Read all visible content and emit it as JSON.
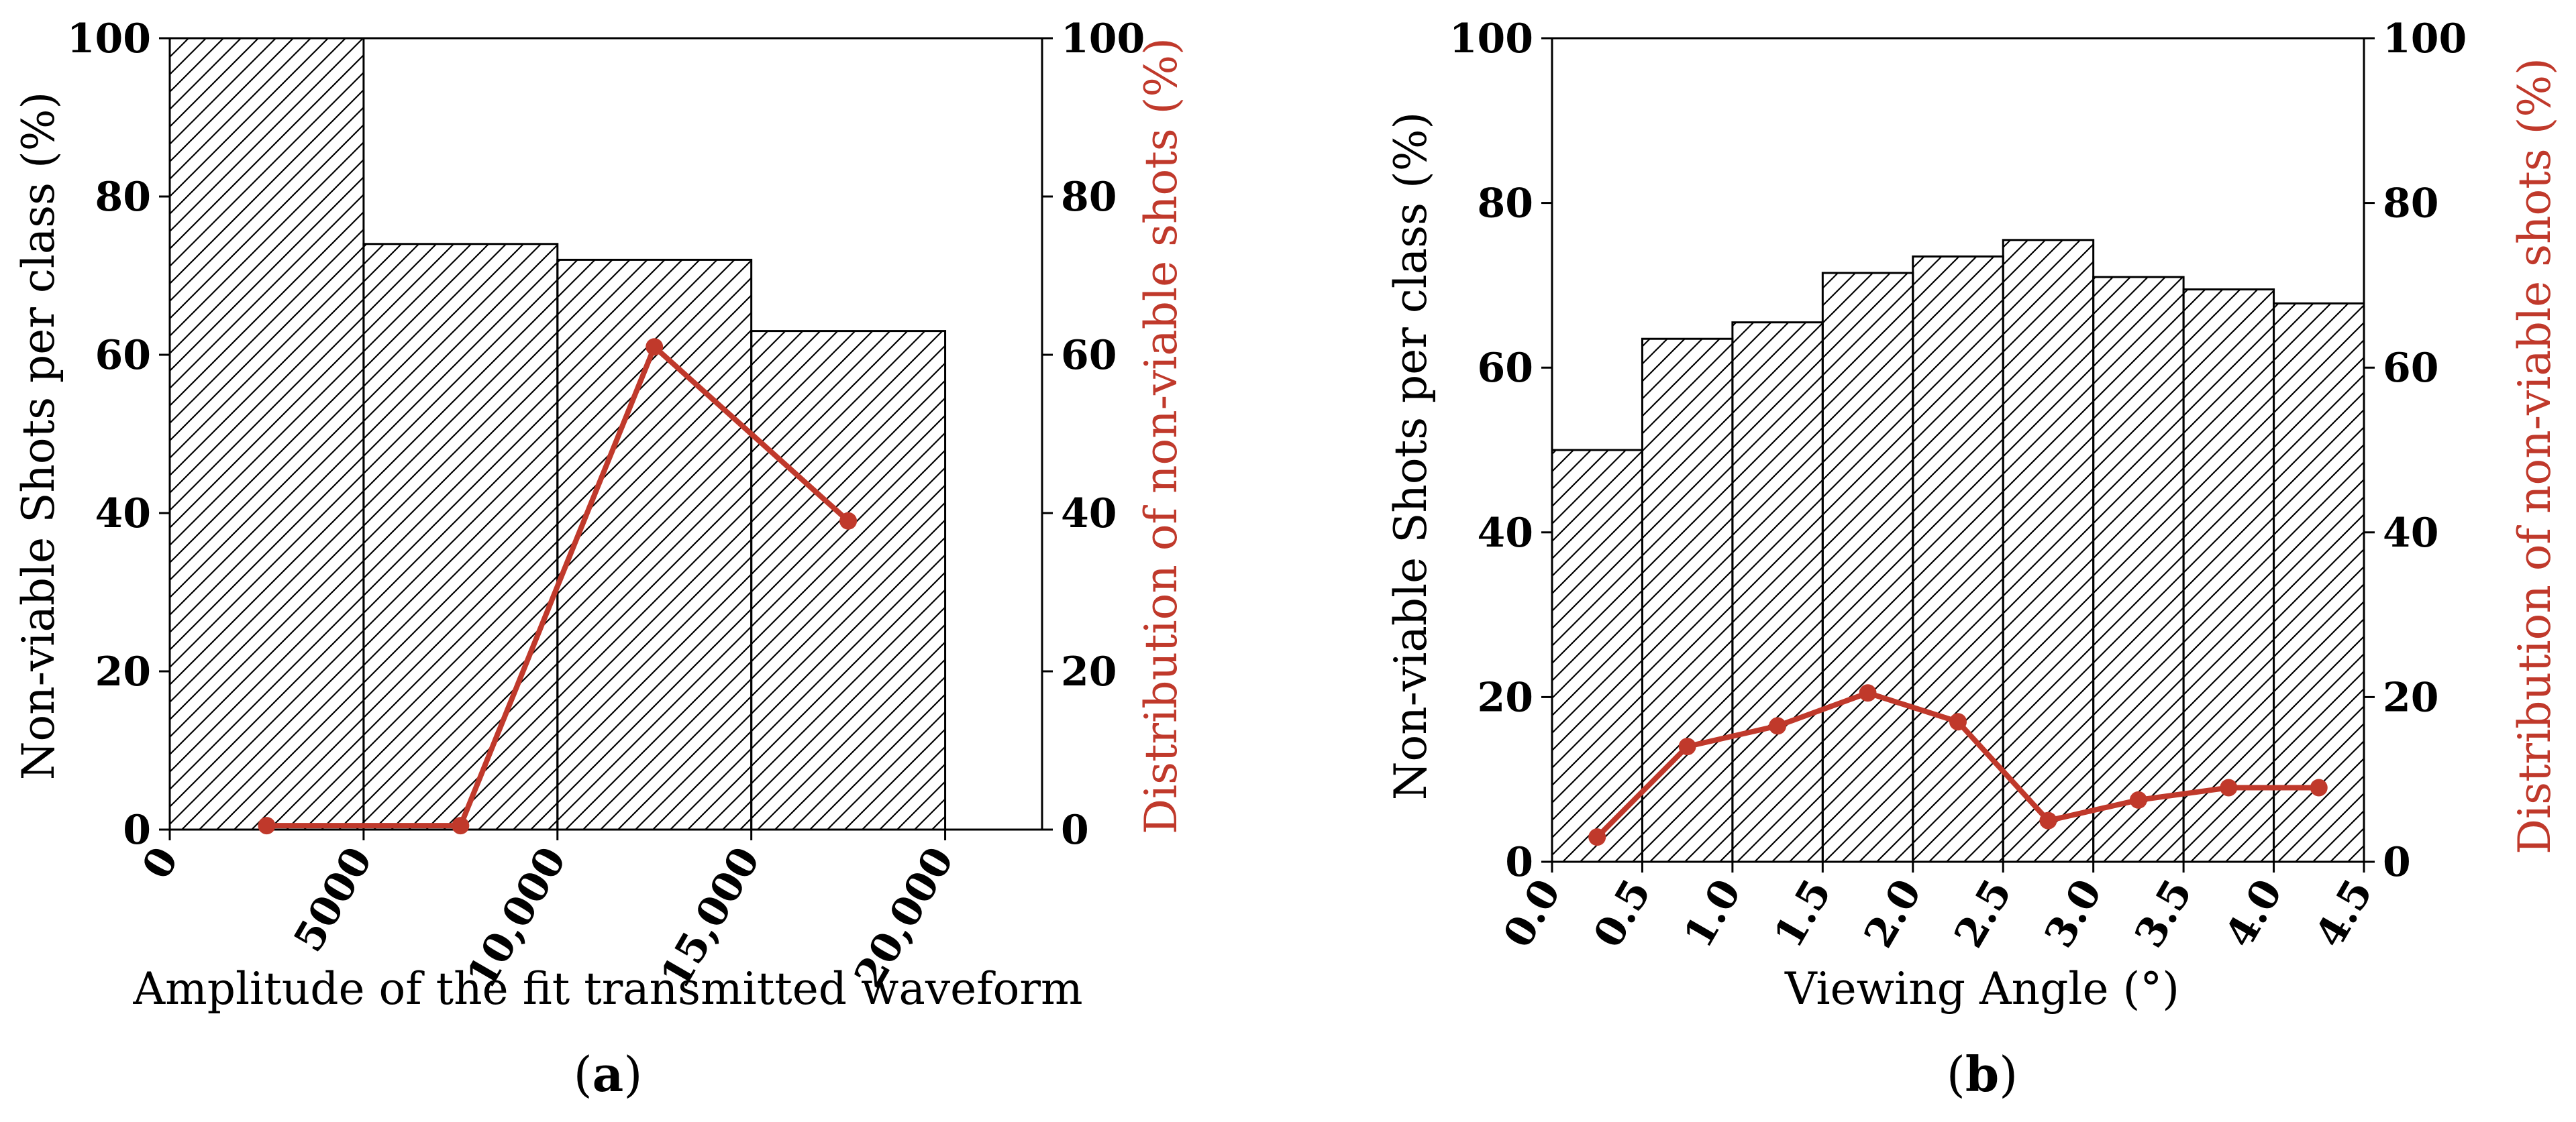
{
  "colors": {
    "line": "#c0392b",
    "hatch": "#000000",
    "axis": "#000000"
  },
  "chart_data": [
    {
      "type": "bar",
      "caption_letter": "a",
      "bar_style": "hatched",
      "bins": [
        [
          0,
          5000
        ],
        [
          5000,
          10000
        ],
        [
          10000,
          15000
        ],
        [
          15000,
          20000
        ]
      ],
      "bar_values": [
        100,
        74,
        72,
        63
      ],
      "line_series": {
        "x": [
          2500,
          7500,
          12500,
          17500
        ],
        "values": [
          0.5,
          0.5,
          61,
          39
        ]
      },
      "xlim": [
        0,
        22500
      ],
      "ylim": [
        0,
        100
      ],
      "y2lim": [
        0,
        100
      ],
      "xticks": [
        0,
        5000,
        10000,
        15000,
        20000
      ],
      "xtick_labels": [
        "0",
        "5000",
        "10,000",
        "15,000",
        "20,000"
      ],
      "yticks": [
        0,
        20,
        40,
        60,
        80,
        100
      ],
      "ytick_labels": [
        "0",
        "20",
        "40",
        "60",
        "80",
        "100"
      ],
      "y2tick_labels": [
        "0",
        "20",
        "40",
        "60",
        "80",
        "100"
      ],
      "xlabel": "Amplitude of the fit transmitted waveform",
      "ylabel": "Non-viable Shots per class (%)",
      "y2label": "Distribution of non-viable shots (%)"
    },
    {
      "type": "bar",
      "caption_letter": "b",
      "bar_style": "hatched",
      "bins": [
        [
          0,
          0.5
        ],
        [
          0.5,
          1.0
        ],
        [
          1.0,
          1.5
        ],
        [
          1.5,
          2.0
        ],
        [
          2.0,
          2.5
        ],
        [
          2.5,
          3.0
        ],
        [
          3.0,
          3.5
        ],
        [
          3.5,
          4.0
        ],
        [
          4.0,
          4.5
        ]
      ],
      "bar_values": [
        50,
        63.5,
        65.5,
        71.5,
        73.5,
        75.5,
        71,
        69.5,
        67.8
      ],
      "line_series": {
        "x": [
          0.25,
          0.75,
          1.25,
          1.75,
          2.25,
          2.75,
          3.25,
          3.75,
          4.25
        ],
        "values": [
          3,
          14,
          16.5,
          20.5,
          17,
          5,
          7.5,
          9,
          9
        ]
      },
      "xlim": [
        0,
        4.5
      ],
      "ylim": [
        0,
        100
      ],
      "y2lim": [
        0,
        100
      ],
      "xticks": [
        0.0,
        0.5,
        1.0,
        1.5,
        2.0,
        2.5,
        3.0,
        3.5,
        4.0,
        4.5
      ],
      "xtick_labels": [
        "0.0",
        "0.5",
        "1.0",
        "1.5",
        "2.0",
        "2.5",
        "3.0",
        "3.5",
        "4.0",
        "4.5"
      ],
      "yticks": [
        0,
        20,
        40,
        60,
        80,
        100
      ],
      "ytick_labels": [
        "0",
        "20",
        "40",
        "60",
        "80",
        "100"
      ],
      "y2tick_labels": [
        "0",
        "20",
        "40",
        "60",
        "80",
        "100"
      ],
      "xlabel": "Viewing Angle (°)",
      "ylabel": "Non-viable Shots per class (%)",
      "y2label": "Distribution of non-viable shots (%)"
    }
  ]
}
